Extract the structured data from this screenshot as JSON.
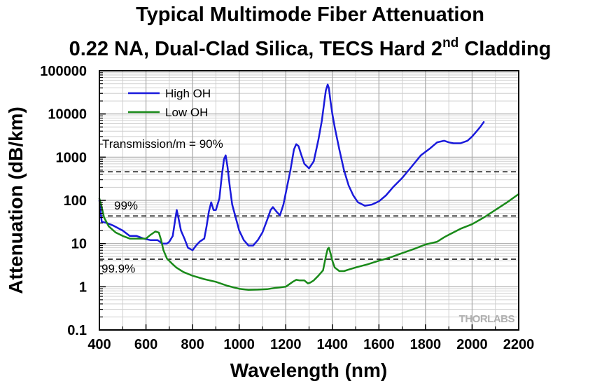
{
  "chart_data": {
    "type": "line",
    "title": "Typical Multimode Fiber Attenuation",
    "subtitle_main": "0.22 NA, Dual-Clad Silica, TECS Hard 2",
    "subtitle_sup": "nd",
    "subtitle_end": " Cladding",
    "xlabel": "Wavelength (nm)",
    "ylabel": "Attenuation (dB/km)",
    "xlim": [
      400,
      2200
    ],
    "ylim": [
      0.1,
      100000
    ],
    "yscale": "log",
    "grid": true,
    "legend_position": "top-left",
    "xticks": [
      400,
      600,
      800,
      1000,
      1200,
      1400,
      1600,
      1800,
      2000,
      2200
    ],
    "xtick_labels": [
      "400",
      "600",
      "800",
      "1000",
      "1200",
      "1400",
      "1600",
      "1800",
      "2000",
      "2200"
    ],
    "yticks": [
      0.1,
      1,
      10,
      100,
      1000,
      10000,
      100000
    ],
    "ytick_labels": [
      "0.1",
      "1",
      "10",
      "100",
      "1000",
      "10000",
      "100000"
    ],
    "series": [
      {
        "name": "High OH",
        "color": "#1a1adc",
        "x": [
          400,
          410,
          430,
          460,
          500,
          530,
          560,
          590,
          620,
          650,
          670,
          690,
          700,
          715,
          725,
          732,
          740,
          750,
          765,
          780,
          800,
          815,
          830,
          850,
          860,
          870,
          880,
          890,
          900,
          915,
          925,
          935,
          942,
          950,
          960,
          970,
          985,
          1000,
          1020,
          1040,
          1060,
          1080,
          1100,
          1120,
          1135,
          1145,
          1160,
          1175,
          1190,
          1205,
          1220,
          1235,
          1245,
          1255,
          1265,
          1280,
          1300,
          1320,
          1340,
          1355,
          1365,
          1372,
          1380,
          1385,
          1392,
          1400,
          1410,
          1430,
          1450,
          1470,
          1490,
          1510,
          1540,
          1570,
          1600,
          1630,
          1660,
          1700,
          1740,
          1780,
          1820,
          1850,
          1880,
          1900,
          1920,
          1950,
          1980,
          2000,
          2020,
          2035,
          2050
        ],
        "y": [
          100,
          32,
          30,
          26,
          20,
          15,
          15,
          13,
          12,
          12,
          10,
          10,
          11,
          15,
          35,
          60,
          38,
          20,
          13,
          8,
          7,
          9,
          11,
          13,
          25,
          55,
          90,
          60,
          60,
          110,
          350,
          900,
          1100,
          600,
          200,
          80,
          40,
          20,
          12,
          9,
          9,
          12,
          18,
          35,
          60,
          70,
          55,
          45,
          80,
          200,
          500,
          1500,
          2000,
          1800,
          1200,
          700,
          550,
          800,
          2500,
          7000,
          18000,
          35000,
          48000,
          40000,
          20000,
          10000,
          5000,
          1500,
          500,
          220,
          130,
          90,
          75,
          80,
          95,
          130,
          200,
          330,
          600,
          1100,
          1600,
          2200,
          2400,
          2200,
          2100,
          2100,
          2400,
          3000,
          4000,
          5000,
          6500
        ]
      },
      {
        "name": "Low OH",
        "color": "#198a19",
        "x": [
          400,
          410,
          420,
          440,
          470,
          500,
          530,
          560,
          600,
          620,
          640,
          655,
          665,
          675,
          690,
          710,
          730,
          760,
          800,
          850,
          900,
          950,
          1000,
          1040,
          1080,
          1120,
          1160,
          1200,
          1230,
          1245,
          1260,
          1280,
          1295,
          1305,
          1320,
          1340,
          1360,
          1372,
          1380,
          1385,
          1392,
          1400,
          1410,
          1430,
          1450,
          1470,
          1500,
          1550,
          1600,
          1650,
          1700,
          1750,
          1800,
          1850,
          1880,
          1900,
          1950,
          2000,
          2050,
          2100,
          2150,
          2200
        ],
        "y": [
          110,
          70,
          40,
          25,
          18,
          15,
          13,
          13,
          13,
          16,
          19,
          18,
          12,
          7,
          4.5,
          3.5,
          2.8,
          2.2,
          1.8,
          1.5,
          1.3,
          1.05,
          0.9,
          0.85,
          0.86,
          0.88,
          0.95,
          1.0,
          1.3,
          1.45,
          1.4,
          1.4,
          1.2,
          1.25,
          1.4,
          1.8,
          2.4,
          5,
          7.5,
          8,
          6,
          4,
          2.8,
          2.3,
          2.3,
          2.5,
          2.8,
          3.3,
          4,
          4.8,
          6,
          7.5,
          9.5,
          11,
          14,
          16,
          22,
          28,
          40,
          60,
          90,
          140
        ]
      }
    ],
    "reference_lines": [
      {
        "label": "Transmission/m = 90%",
        "y": 457
      },
      {
        "label": "99%",
        "y": 43.6
      },
      {
        "label": "99.9%",
        "y": 4.35
      }
    ],
    "watermark": "THORLABS"
  }
}
